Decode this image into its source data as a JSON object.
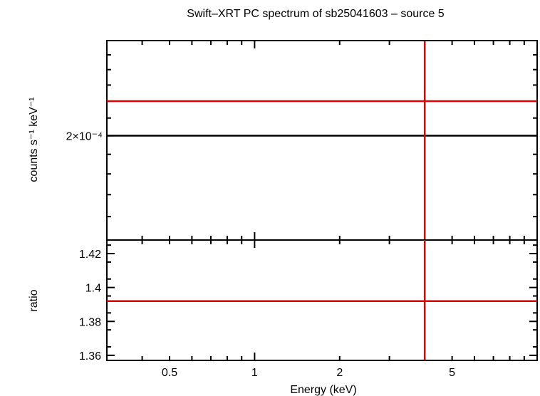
{
  "chart_data": [
    {
      "type": "line",
      "title": "Swift–XRT PC spectrum of sb25041603 – source 5",
      "ylabel": "counts s⁻¹ keV⁻¹",
      "xscale": "log",
      "xlim": [
        0.3,
        10
      ],
      "yscale": "log",
      "ylim": [
        0.00015,
        0.00026
      ],
      "yticks": [
        {
          "value": 0.0002,
          "label": "2×10⁻⁴"
        }
      ],
      "series": [
        {
          "color": "#000000",
          "x": [
            0.3,
            10
          ],
          "y": [
            0.0002,
            0.0002
          ]
        },
        {
          "color": "#e00000",
          "x": [
            0.3,
            10
          ],
          "y": [
            0.00022,
            0.00022
          ]
        }
      ],
      "vlines": [
        {
          "x": 4.0,
          "color": "#e00000"
        }
      ]
    },
    {
      "type": "line",
      "xlabel": "Energy (keV)",
      "ylabel": "ratio",
      "xscale": "log",
      "xlim": [
        0.3,
        10
      ],
      "xticks": [
        {
          "value": 0.5,
          "label": "0.5"
        },
        {
          "value": 1,
          "label": "1"
        },
        {
          "value": 2,
          "label": "2"
        },
        {
          "value": 5,
          "label": "5"
        }
      ],
      "ylim": [
        1.357,
        1.428
      ],
      "yticks": [
        {
          "value": 1.36,
          "label": "1.36"
        },
        {
          "value": 1.38,
          "label": "1.38"
        },
        {
          "value": 1.4,
          "label": "1.4"
        },
        {
          "value": 1.42,
          "label": "1.42"
        }
      ],
      "series": [
        {
          "color": "#e00000",
          "x": [
            0.3,
            10
          ],
          "y": [
            1.392,
            1.392
          ]
        }
      ],
      "vlines": [
        {
          "x": 4.0,
          "color": "#e00000"
        }
      ]
    }
  ]
}
